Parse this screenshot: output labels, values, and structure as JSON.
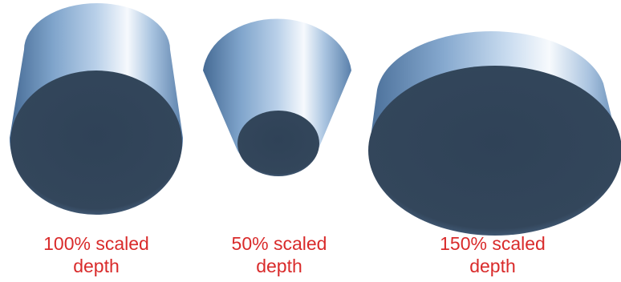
{
  "figures": [
    {
      "line1": "100% scaled",
      "line2": "depth"
    },
    {
      "line1": "50% scaled",
      "line2": "depth"
    },
    {
      "line1": "150% scaled",
      "line2": "depth"
    }
  ],
  "colors": {
    "caption": "#d92b2b",
    "face": "#34475c",
    "side_light": "#f6f9fd",
    "side_mid": "#8aaed3",
    "side_dark": "#456a94"
  }
}
